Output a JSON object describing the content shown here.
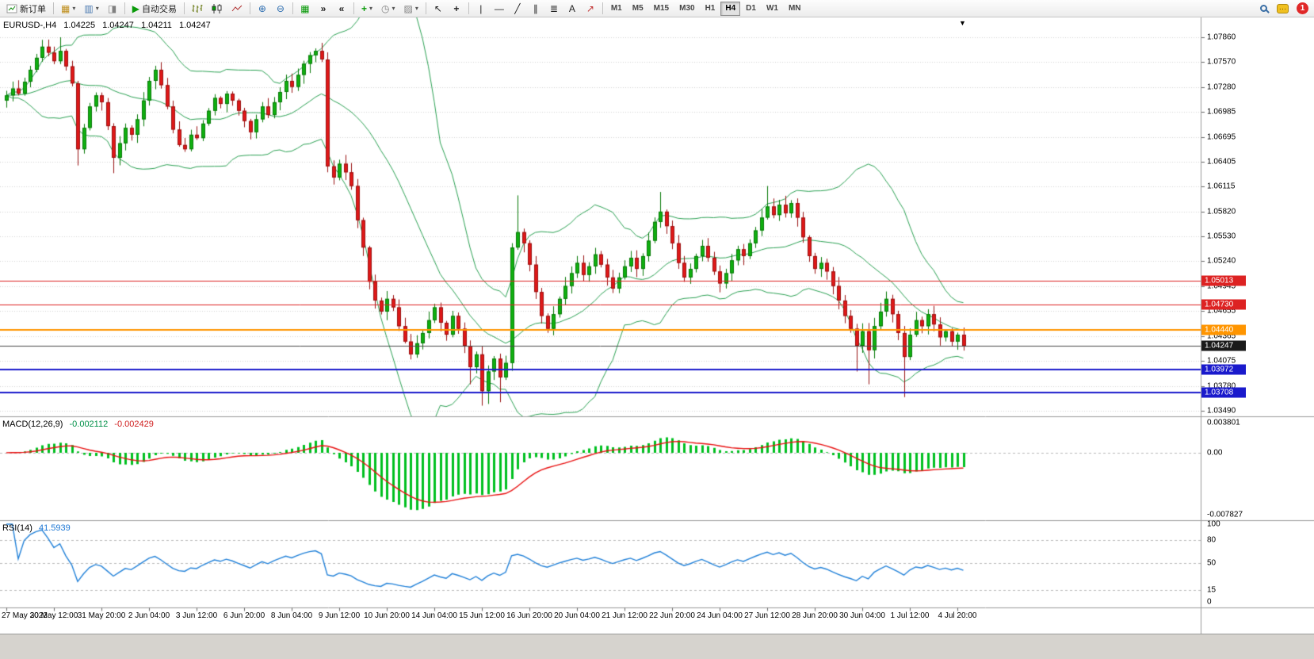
{
  "toolbar": {
    "new_order": "新订单",
    "auto_trading": "自动交易",
    "timeframes": [
      "M1",
      "M5",
      "M15",
      "M30",
      "H1",
      "H4",
      "D1",
      "W1",
      "MN"
    ],
    "active_timeframe": "H4",
    "notification_count": "1"
  },
  "icons": {
    "caret": "▾",
    "new_chart": "▦",
    "profiles": "▥",
    "alerts": "◨",
    "play": "▶",
    "zoom_in": "⊕",
    "zoom_out": "⊖",
    "tile_windows": "▦",
    "auto_scroll": "»",
    "chart_shift": "«",
    "indicators": "+",
    "periods": "◷",
    "templates": "▨",
    "cursor": "↖",
    "crosshair": "+",
    "vline": "|",
    "hline": "—",
    "trendline": "╱",
    "channel": "∥",
    "fibonacci": "≣",
    "text_tool": "A",
    "arrows_tool": "↗",
    "chat_dots": "…",
    "shift_marker": "▼"
  },
  "chart": {
    "symbol_title": "EURUSD-,H4",
    "ohlc": {
      "open": "1.04225",
      "high": "1.04247",
      "low": "1.04211",
      "close": "1.04247"
    },
    "price_axis": [
      "1.07860",
      "1.07570",
      "1.07280",
      "1.06985",
      "1.06695",
      "1.06405",
      "1.06115",
      "1.05820",
      "1.05530",
      "1.05240",
      "1.04945",
      "1.04655",
      "1.04365",
      "1.04075",
      "1.03780",
      "1.03490"
    ],
    "time_axis": [
      "27 May 2022",
      "30 May 12:00",
      "31 May 20:00",
      "2 Jun 04:00",
      "3 Jun 12:00",
      "6 Jun 20:00",
      "8 Jun 04:00",
      "9 Jun 12:00",
      "10 Jun 20:00",
      "14 Jun 04:00",
      "15 Jun 12:00",
      "16 Jun 20:00",
      "20 Jun 04:00",
      "21 Jun 12:00",
      "22 Jun 20:00",
      "24 Jun 04:00",
      "27 Jun 12:00",
      "28 Jun 20:00",
      "30 Jun 04:00",
      "1 Jul 12:00",
      "4 Jul 20:00"
    ],
    "levels": [
      {
        "price": 1.05013,
        "label": "1.05013",
        "color": "#dd2222",
        "width": 1
      },
      {
        "price": 1.0473,
        "label": "1.04730",
        "color": "#dd2222",
        "width": 1
      },
      {
        "price": 1.0444,
        "label": "1.04440",
        "color": "#ff9500",
        "width": 2
      },
      {
        "price": 1.03972,
        "label": "1.03972",
        "color": "#1a1acc",
        "width": 2
      },
      {
        "price": 1.03708,
        "label": "1.03708",
        "color": "#1a1acc",
        "width": 2
      }
    ],
    "bid": {
      "price": 1.04247,
      "label": "1.04247",
      "color": "#1a1a1a"
    },
    "colors": {
      "up": "#10b010",
      "up_border": "#067806",
      "down": "#e01818",
      "down_border": "#991010",
      "band": "#2aa052",
      "grid": "#d2d2d2",
      "separator": "#9a9a9a",
      "bid_line": "#484848"
    },
    "candles": {
      "first_open": 1.0712,
      "closes": [
        1.0718,
        1.0726,
        1.072,
        1.0734,
        1.0748,
        1.0762,
        1.0775,
        1.0768,
        1.0758,
        1.077,
        1.0752,
        1.0732,
        1.0655,
        1.068,
        1.0705,
        1.0718,
        1.071,
        1.0682,
        1.0645,
        1.0662,
        1.068,
        1.0672,
        1.069,
        1.0712,
        1.0735,
        1.0748,
        1.073,
        1.0705,
        1.0678,
        1.066,
        1.0655,
        1.0672,
        1.0668,
        1.0685,
        1.07,
        1.0715,
        1.0708,
        1.072,
        1.0712,
        1.07,
        1.0688,
        1.0675,
        1.069,
        1.0705,
        1.0695,
        1.071,
        1.0722,
        1.0735,
        1.0728,
        1.0742,
        1.0755,
        1.0765,
        1.077,
        1.076,
        1.0635,
        1.0622,
        1.0638,
        1.0628,
        1.0612,
        1.0572,
        1.054,
        1.05,
        1.0478,
        1.0465,
        1.048,
        1.047,
        1.0448,
        1.043,
        1.0415,
        1.0428,
        1.044,
        1.0455,
        1.047,
        1.0452,
        1.0438,
        1.046,
        1.0445,
        1.0425,
        1.04,
        1.0415,
        1.0372,
        1.0395,
        1.041,
        1.0388,
        1.0405,
        1.054,
        1.0558,
        1.0545,
        1.052,
        1.0488,
        1.046,
        1.0445,
        1.0462,
        1.048,
        1.0495,
        1.051,
        1.0522,
        1.0508,
        1.0518,
        1.0532,
        1.052,
        1.0505,
        1.0492,
        1.0505,
        1.0518,
        1.0528,
        1.0515,
        1.053,
        1.0548,
        1.057,
        1.0582,
        1.0565,
        1.0545,
        1.0522,
        1.0505,
        1.0515,
        1.053,
        1.0542,
        1.0528,
        1.0512,
        1.0498,
        1.051,
        1.0525,
        1.0538,
        1.053,
        1.0545,
        1.056,
        1.0575,
        1.0588,
        1.0578,
        1.059,
        1.058,
        1.0592,
        1.0575,
        1.0552,
        1.053,
        1.0515,
        1.0522,
        1.0512,
        1.0495,
        1.0478,
        1.046,
        1.0445,
        1.0425,
        1.0442,
        1.042,
        1.0448,
        1.0465,
        1.048,
        1.0462,
        1.044,
        1.0412,
        1.0438,
        1.0455,
        1.0448,
        1.0462,
        1.045,
        1.0435,
        1.0442,
        1.043,
        1.0438,
        1.04247
      ],
      "wick_high": {
        "6": 1.0783,
        "9": 1.0786,
        "52": 1.0773,
        "86": 1.0601,
        "110": 1.0605,
        "128": 1.0612
      },
      "wick_low": {
        "12": 1.0636,
        "18": 1.0627,
        "54": 1.0628,
        "78": 1.038,
        "80": 1.0355,
        "81": 1.0357,
        "83": 1.0359,
        "143": 1.0395,
        "145": 1.038,
        "151": 1.0365
      }
    }
  },
  "macd": {
    "label": "MACD(12,26,9)",
    "value_main": "-0.002112",
    "value_signal": "-0.002429",
    "axis": [
      "0.003801",
      "0.00",
      "-0.007827"
    ],
    "fast": 12,
    "slow": 26,
    "signal": 9,
    "hist_color": "#00c020",
    "signal_color": "#e81010"
  },
  "rsi": {
    "label": "RSI(14)",
    "value": "41.5939",
    "axis": [
      "100",
      "80",
      "50",
      "15",
      "0"
    ],
    "levels": [
      80,
      50,
      15
    ],
    "period": 14,
    "color": "#2080d8"
  }
}
